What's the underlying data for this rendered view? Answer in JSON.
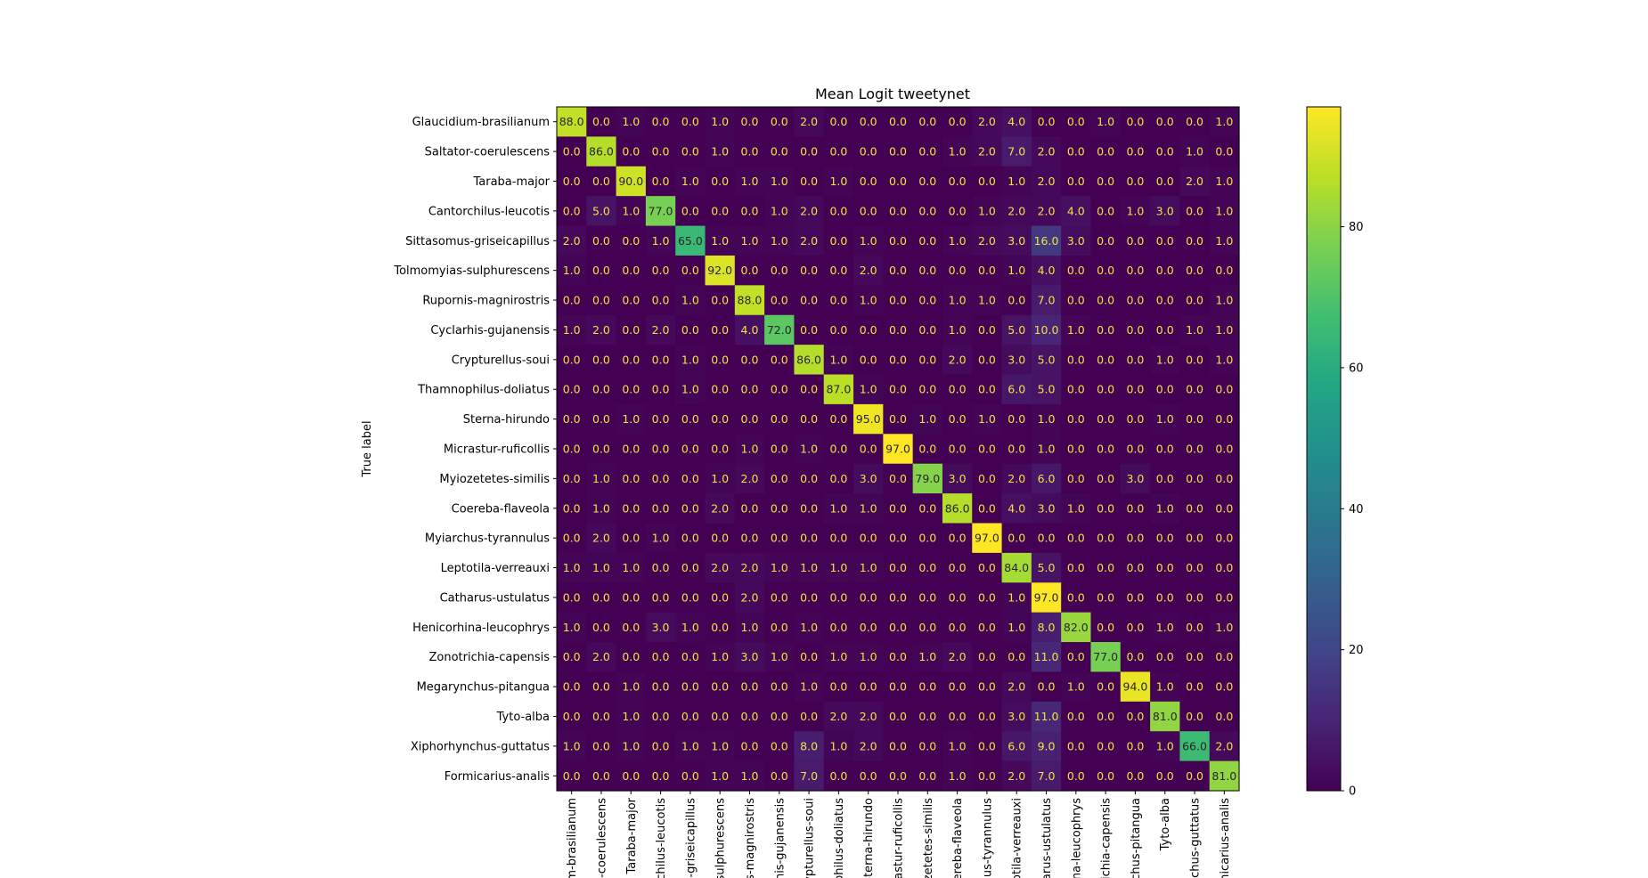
{
  "chart_data": {
    "type": "heatmap",
    "title": "Mean Logit tweetynet",
    "ylabel": "True label",
    "xlabel": "",
    "labels": [
      "Glaucidium-brasilianum",
      "Saltator-coerulescens",
      "Taraba-major",
      "Cantorchilus-leucotis",
      "Sittasomus-griseicapillus",
      "Tolmomyias-sulphurescens",
      "Rupornis-magnirostris",
      "Cyclarhis-gujanensis",
      "Crypturellus-soui",
      "Thamnophilus-doliatus",
      "Sterna-hirundo",
      "Micrastur-ruficollis",
      "Myiozetetes-similis",
      "Coereba-flaveola",
      "Myiarchus-tyrannulus",
      "Leptotila-verreauxi",
      "Catharus-ustulatus",
      "Henicorhina-leucophrys",
      "Zonotrichia-capensis",
      "Megarynchus-pitangua",
      "Tyto-alba",
      "Xiphorhynchus-guttatus",
      "Formicarius-analis"
    ],
    "x_tick_labels": [
      "m-brasilianum",
      "-coerulescens",
      "Taraba-major",
      "chilus-leucotis",
      "-griseicapillus",
      "sulphurescens",
      "s-magnirostris",
      "his-gujanensis",
      "rypturellus-soui",
      "ophilus-doliatus",
      "Sterna-hirundo",
      "astur-ruficollis",
      "zetetes-similis",
      "ereba-flaveola",
      "us-tyrannulus",
      "otila-verreauxi",
      "arus-ustulatus",
      "na-leucophrys",
      "richia-capensis",
      "chus-pitangua",
      "Tyto-alba",
      "nchus-guttatus",
      "micarius-analis"
    ],
    "matrix": [
      [
        88,
        0,
        1,
        0,
        0,
        1,
        0,
        0,
        2,
        0,
        0,
        0,
        0,
        0,
        2,
        4,
        0,
        0,
        1,
        0,
        0,
        0,
        1
      ],
      [
        0,
        86,
        0,
        0,
        0,
        1,
        0,
        0,
        0,
        0,
        0,
        0,
        0,
        1,
        2,
        7,
        2,
        0,
        0,
        0,
        0,
        1,
        0
      ],
      [
        0,
        0,
        90,
        0,
        1,
        0,
        1,
        1,
        0,
        1,
        0,
        0,
        0,
        0,
        0,
        1,
        2,
        0,
        0,
        0,
        0,
        2,
        1
      ],
      [
        0,
        5,
        1,
        77,
        0,
        0,
        0,
        1,
        2,
        0,
        0,
        0,
        0,
        0,
        1,
        2,
        2,
        4,
        0,
        1,
        3,
        0,
        1
      ],
      [
        2,
        0,
        0,
        1,
        65,
        1,
        1,
        1,
        2,
        0,
        1,
        0,
        0,
        1,
        2,
        3,
        16,
        3,
        0,
        0,
        0,
        0,
        1
      ],
      [
        1,
        0,
        0,
        0,
        0,
        92,
        0,
        0,
        0,
        0,
        2,
        0,
        0,
        0,
        0,
        1,
        4,
        0,
        0,
        0,
        0,
        0,
        0
      ],
      [
        0,
        0,
        0,
        0,
        1,
        0,
        88,
        0,
        0,
        0,
        1,
        0,
        0,
        1,
        1,
        0,
        7,
        0,
        0,
        0,
        0,
        0,
        1
      ],
      [
        1,
        2,
        0,
        2,
        0,
        0,
        4,
        72,
        0,
        0,
        0,
        0,
        0,
        1,
        0,
        5,
        10,
        1,
        0,
        0,
        0,
        1,
        1
      ],
      [
        0,
        0,
        0,
        0,
        1,
        0,
        0,
        0,
        86,
        1,
        0,
        0,
        0,
        2,
        0,
        3,
        5,
        0,
        0,
        0,
        1,
        0,
        1
      ],
      [
        0,
        0,
        0,
        0,
        1,
        0,
        0,
        0,
        0,
        87,
        1,
        0,
        0,
        0,
        0,
        6,
        5,
        0,
        0,
        0,
        0,
        0,
        0
      ],
      [
        0,
        0,
        1,
        0,
        0,
        0,
        0,
        0,
        0,
        0,
        95,
        0,
        1,
        0,
        1,
        0,
        1,
        0,
        0,
        0,
        1,
        0,
        0
      ],
      [
        0,
        0,
        0,
        0,
        0,
        0,
        1,
        0,
        1,
        0,
        0,
        97,
        0,
        0,
        0,
        0,
        1,
        0,
        0,
        0,
        0,
        0,
        0
      ],
      [
        0,
        1,
        0,
        0,
        0,
        1,
        2,
        0,
        0,
        0,
        3,
        0,
        79,
        3,
        0,
        2,
        6,
        0,
        0,
        3,
        0,
        0,
        0
      ],
      [
        0,
        1,
        0,
        0,
        0,
        2,
        0,
        0,
        0,
        1,
        1,
        0,
        0,
        86,
        0,
        4,
        3,
        1,
        0,
        0,
        1,
        0,
        0
      ],
      [
        0,
        2,
        0,
        1,
        0,
        0,
        0,
        0,
        0,
        0,
        0,
        0,
        0,
        0,
        97,
        0,
        0,
        0,
        0,
        0,
        0,
        0,
        0
      ],
      [
        1,
        1,
        1,
        0,
        0,
        2,
        2,
        1,
        1,
        1,
        1,
        0,
        0,
        0,
        0,
        84,
        5,
        0,
        0,
        0,
        0,
        0,
        0
      ],
      [
        0,
        0,
        0,
        0,
        0,
        0,
        2,
        0,
        0,
        0,
        0,
        0,
        0,
        0,
        0,
        1,
        97,
        0,
        0,
        0,
        0,
        0,
        0
      ],
      [
        1,
        0,
        0,
        3,
        1,
        0,
        1,
        0,
        1,
        0,
        0,
        0,
        0,
        0,
        0,
        1,
        8,
        82,
        0,
        0,
        1,
        0,
        1
      ],
      [
        0,
        2,
        0,
        0,
        0,
        1,
        3,
        1,
        0,
        1,
        1,
        0,
        1,
        2,
        0,
        0,
        11,
        0,
        77,
        0,
        0,
        0,
        0
      ],
      [
        0,
        0,
        1,
        0,
        0,
        0,
        0,
        0,
        1,
        0,
        0,
        0,
        0,
        0,
        0,
        2,
        0,
        1,
        0,
        94,
        1,
        0,
        0
      ],
      [
        0,
        0,
        1,
        0,
        0,
        0,
        0,
        0,
        0,
        2,
        2,
        0,
        0,
        0,
        0,
        3,
        11,
        0,
        0,
        0,
        81,
        0,
        0
      ],
      [
        1,
        0,
        1,
        0,
        1,
        1,
        0,
        0,
        8,
        1,
        2,
        0,
        0,
        1,
        0,
        6,
        9,
        0,
        0,
        0,
        1,
        66,
        2
      ],
      [
        0,
        0,
        0,
        0,
        0,
        1,
        1,
        0,
        7,
        0,
        0,
        0,
        0,
        1,
        0,
        2,
        7,
        0,
        0,
        0,
        0,
        0,
        81
      ]
    ],
    "value_range": [
      0,
      97
    ],
    "colormap": "viridis",
    "colorbar": {
      "ticks": [
        0,
        20,
        40,
        60,
        80
      ]
    },
    "grid": false
  }
}
